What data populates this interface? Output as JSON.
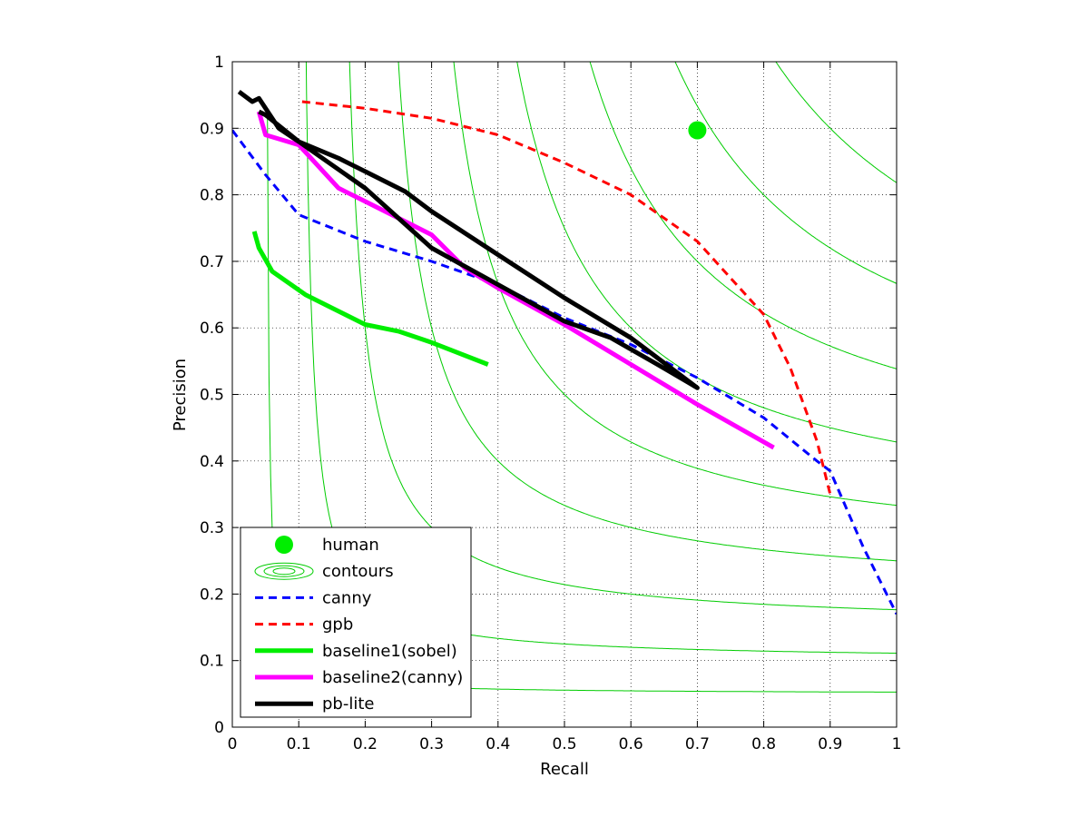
{
  "chart_data": {
    "type": "line",
    "xlabel": "Recall",
    "ylabel": "Precision",
    "xlim": [
      0,
      1
    ],
    "ylim": [
      0,
      1
    ],
    "xticks": [
      "0",
      "0.1",
      "0.2",
      "0.3",
      "0.4",
      "0.5",
      "0.6",
      "0.7",
      "0.8",
      "0.9",
      "1"
    ],
    "yticks": [
      "0",
      "0.1",
      "0.2",
      "0.3",
      "0.4",
      "0.5",
      "0.6",
      "0.7",
      "0.8",
      "0.9",
      "1"
    ],
    "grid": true,
    "grid_style": "dotted",
    "legend_position": "bottom-left",
    "contours": {
      "label": "contours",
      "color": "#00cc00",
      "f_measures": [
        0.1,
        0.2,
        0.3,
        0.4,
        0.5,
        0.6,
        0.7,
        0.8,
        0.9
      ]
    },
    "series": [
      {
        "name": "human",
        "kind": "marker",
        "color": "#00ee00",
        "points": [
          [
            0.7,
            0.897
          ]
        ]
      },
      {
        "name": "canny",
        "kind": "dashed",
        "color": "#0000ff",
        "points": [
          [
            0.0,
            0.897
          ],
          [
            0.05,
            0.83
          ],
          [
            0.1,
            0.77
          ],
          [
            0.2,
            0.73
          ],
          [
            0.3,
            0.7
          ],
          [
            0.4,
            0.665
          ],
          [
            0.5,
            0.615
          ],
          [
            0.6,
            0.575
          ],
          [
            0.7,
            0.525
          ],
          [
            0.8,
            0.465
          ],
          [
            0.88,
            0.4
          ],
          [
            0.9,
            0.385
          ],
          [
            0.95,
            0.27
          ],
          [
            1.0,
            0.17
          ]
        ]
      },
      {
        "name": "gpb",
        "kind": "dashed",
        "color": "#ff0000",
        "points": [
          [
            0.105,
            0.94
          ],
          [
            0.2,
            0.93
          ],
          [
            0.3,
            0.915
          ],
          [
            0.4,
            0.89
          ],
          [
            0.5,
            0.848
          ],
          [
            0.6,
            0.8
          ],
          [
            0.7,
            0.73
          ],
          [
            0.8,
            0.62
          ],
          [
            0.84,
            0.54
          ],
          [
            0.88,
            0.43
          ],
          [
            0.9,
            0.35
          ]
        ]
      },
      {
        "name": "baseline1(sobel)",
        "kind": "solid",
        "color": "#00ee00",
        "points": [
          [
            0.033,
            0.745
          ],
          [
            0.04,
            0.72
          ],
          [
            0.06,
            0.685
          ],
          [
            0.11,
            0.65
          ],
          [
            0.15,
            0.63
          ],
          [
            0.2,
            0.605
          ],
          [
            0.25,
            0.595
          ],
          [
            0.3,
            0.578
          ],
          [
            0.385,
            0.545
          ]
        ]
      },
      {
        "name": "baseline2(canny)",
        "kind": "solid",
        "color": "#ff00ff",
        "points": [
          [
            0.04,
            0.925
          ],
          [
            0.05,
            0.89
          ],
          [
            0.1,
            0.875
          ],
          [
            0.16,
            0.81
          ],
          [
            0.2,
            0.79
          ],
          [
            0.3,
            0.74
          ],
          [
            0.35,
            0.69
          ],
          [
            0.4,
            0.66
          ],
          [
            0.5,
            0.605
          ],
          [
            0.6,
            0.545
          ],
          [
            0.7,
            0.485
          ],
          [
            0.815,
            0.42
          ]
        ]
      },
      {
        "name": "pb-lite",
        "kind": "solid",
        "color": "#000000",
        "points": [
          [
            0.01,
            0.955
          ],
          [
            0.03,
            0.94
          ],
          [
            0.04,
            0.945
          ],
          [
            0.07,
            0.9
          ],
          [
            0.1,
            0.88
          ],
          [
            0.16,
            0.855
          ],
          [
            0.2,
            0.835
          ],
          [
            0.26,
            0.805
          ],
          [
            0.3,
            0.775
          ],
          [
            0.4,
            0.71
          ],
          [
            0.5,
            0.645
          ],
          [
            0.6,
            0.585
          ],
          [
            0.64,
            0.555
          ],
          [
            0.7,
            0.51
          ],
          [
            0.64,
            0.545
          ],
          [
            0.57,
            0.585
          ],
          [
            0.5,
            0.61
          ],
          [
            0.4,
            0.665
          ],
          [
            0.3,
            0.72
          ],
          [
            0.2,
            0.81
          ],
          [
            0.1,
            0.88
          ],
          [
            0.05,
            0.92
          ],
          [
            0.04,
            0.925
          ]
        ]
      }
    ],
    "legend": [
      {
        "label": "human",
        "ref": "human"
      },
      {
        "label": "contours",
        "ref": "contours"
      },
      {
        "label": "canny",
        "ref": "canny"
      },
      {
        "label": "gpb",
        "ref": "gpb"
      },
      {
        "label": "baseline1(sobel)",
        "ref": "baseline1(sobel)"
      },
      {
        "label": "baseline2(canny)",
        "ref": "baseline2(canny)"
      },
      {
        "label": "pb-lite",
        "ref": "pb-lite"
      }
    ]
  }
}
